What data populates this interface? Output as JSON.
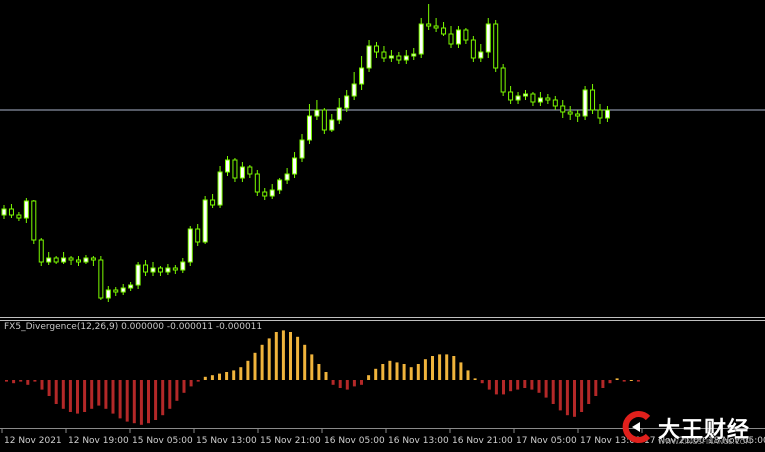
{
  "indicator": {
    "label": "FX5_Divergence(12,26,9) 0.000000 -0.000011 -0.000011"
  },
  "time_axis": {
    "labels": [
      "12 Nov 2021",
      "12 Nov 19:00",
      "15 Nov 05:00",
      "15 Nov 13:00",
      "15 Nov 21:00",
      "16 Nov 05:00",
      "16 Nov 13:00",
      "16 Nov 21:00",
      "17 Nov 05:00",
      "17 Nov 13:00",
      "17 Nov 21:00",
      "18 Nov 05:00"
    ]
  },
  "colors": {
    "background": "#000000",
    "candle": "#7cfc00",
    "bull_body": "#ffffff",
    "bear_body": "#000000",
    "hline": "#aab4cc",
    "divider": "#c0c0c0",
    "hist_pos": "#f0b43c",
    "hist_neg": "#b42828",
    "axis_text": "#cfcfcf"
  },
  "watermark": {
    "text": "大王财经",
    "url": "WWW.KINGSFINANCE.COM",
    "icon": "kingsfinance-logo-icon"
  },
  "chart_data": [
    {
      "type": "candlestick",
      "title": "",
      "xlabel": "",
      "ylabel": "",
      "grid": false,
      "horizontal_line": true,
      "ohlc": [
        [
          215,
          209,
          219,
          205
        ],
        [
          209,
          215,
          218,
          204
        ],
        [
          215,
          218,
          221,
          212
        ],
        [
          218,
          201,
          223,
          198
        ],
        [
          201,
          240,
          244,
          200
        ],
        [
          240,
          262,
          266,
          238
        ],
        [
          262,
          258,
          265,
          252
        ],
        [
          258,
          262,
          264,
          256
        ],
        [
          262,
          258,
          264,
          252
        ],
        [
          258,
          260,
          265,
          256
        ],
        [
          260,
          262,
          266,
          256
        ],
        [
          262,
          258,
          264,
          255
        ],
        [
          258,
          260,
          266,
          256
        ],
        [
          260,
          298,
          300,
          256
        ],
        [
          298,
          290,
          302,
          286
        ],
        [
          290,
          292,
          296,
          287
        ],
        [
          292,
          288,
          295,
          284
        ],
        [
          288,
          285,
          291,
          282
        ],
        [
          285,
          265,
          289,
          262
        ],
        [
          265,
          272,
          276,
          260
        ],
        [
          272,
          268,
          276,
          262
        ],
        [
          268,
          272,
          276,
          266
        ],
        [
          272,
          268,
          275,
          264
        ],
        [
          268,
          270,
          274,
          265
        ],
        [
          270,
          262,
          273,
          258
        ],
        [
          262,
          229,
          266,
          226
        ],
        [
          229,
          242,
          246,
          224
        ],
        [
          242,
          200,
          244,
          196
        ],
        [
          200,
          205,
          208,
          194
        ],
        [
          205,
          172,
          208,
          166
        ],
        [
          172,
          160,
          176,
          156
        ],
        [
          160,
          178,
          182,
          158
        ],
        [
          178,
          167,
          182,
          162
        ],
        [
          167,
          174,
          178,
          165
        ],
        [
          174,
          192,
          196,
          170
        ],
        [
          192,
          196,
          200,
          188
        ],
        [
          196,
          190,
          199,
          184
        ],
        [
          190,
          180,
          194,
          178
        ],
        [
          180,
          174,
          184,
          168
        ],
        [
          174,
          158,
          178,
          152
        ],
        [
          158,
          140,
          162,
          134
        ],
        [
          140,
          116,
          144,
          104
        ],
        [
          116,
          110,
          120,
          100
        ],
        [
          110,
          130,
          134,
          108
        ],
        [
          130,
          120,
          132,
          114
        ],
        [
          120,
          108,
          124,
          98
        ],
        [
          108,
          96,
          112,
          90
        ],
        [
          96,
          84,
          100,
          72
        ],
        [
          84,
          68,
          90,
          56
        ],
        [
          68,
          46,
          72,
          40
        ],
        [
          46,
          52,
          58,
          42
        ],
        [
          52,
          58,
          62,
          46
        ],
        [
          58,
          56,
          62,
          50
        ],
        [
          56,
          60,
          64,
          52
        ],
        [
          60,
          56,
          64,
          50
        ],
        [
          56,
          54,
          60,
          48
        ],
        [
          54,
          24,
          58,
          18
        ],
        [
          24,
          26,
          30,
          4
        ],
        [
          26,
          28,
          32,
          18
        ],
        [
          28,
          34,
          36,
          22
        ],
        [
          34,
          44,
          48,
          26
        ],
        [
          44,
          30,
          48,
          26
        ],
        [
          30,
          40,
          44,
          28
        ],
        [
          40,
          58,
          62,
          36
        ],
        [
          58,
          52,
          62,
          44
        ],
        [
          52,
          24,
          58,
          18
        ],
        [
          24,
          68,
          72,
          20
        ],
        [
          68,
          92,
          96,
          64
        ],
        [
          92,
          100,
          104,
          86
        ],
        [
          100,
          96,
          104,
          92
        ],
        [
          96,
          94,
          100,
          90
        ],
        [
          94,
          102,
          106,
          92
        ],
        [
          102,
          98,
          106,
          92
        ],
        [
          98,
          100,
          104,
          94
        ],
        [
          100,
          106,
          110,
          96
        ],
        [
          106,
          112,
          118,
          100
        ],
        [
          112,
          114,
          120,
          106
        ],
        [
          114,
          116,
          122,
          110
        ],
        [
          116,
          90,
          120,
          86
        ],
        [
          90,
          110,
          114,
          84
        ],
        [
          110,
          118,
          124,
          104
        ],
        [
          118,
          110,
          122,
          106
        ]
      ]
    },
    {
      "type": "histogram",
      "title": "",
      "xlabel": "",
      "ylabel": "",
      "grid": false,
      "y_range": [
        -2.5e-05,
        2.8e-05
      ],
      "values": [
        -1,
        -2,
        -1,
        -3,
        -1,
        -6,
        -10,
        -15,
        -18,
        -20,
        -21,
        -20,
        -18,
        -16,
        -18,
        -21,
        -24,
        -26,
        -27,
        -28,
        -27,
        -25,
        -22,
        -18,
        -13,
        -8,
        -4,
        -1,
        2,
        3,
        4,
        5,
        6,
        8,
        12,
        17,
        22,
        26,
        30,
        31,
        30,
        27,
        22,
        16,
        10,
        5,
        -3,
        -5,
        -6,
        -4,
        -3,
        3,
        7,
        10,
        12,
        11,
        10,
        8,
        10,
        13,
        15,
        16,
        16,
        15,
        11,
        6,
        1,
        -2,
        -6,
        -9,
        -9,
        -7,
        -6,
        -5,
        -6,
        -8,
        -11,
        -15,
        -19,
        -22,
        -23,
        -20,
        -15,
        -10,
        -5,
        -2,
        1,
        -1,
        0,
        -1
      ]
    }
  ]
}
